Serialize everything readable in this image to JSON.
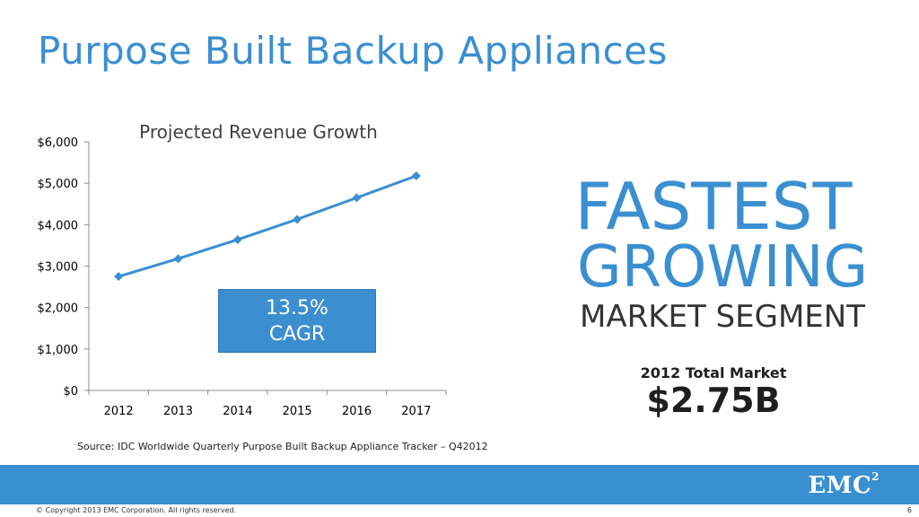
{
  "slide": {
    "title": "Purpose Built Backup Appliances",
    "source": "Source:  IDC Worldwide Quarterly Purpose Built Backup Appliance Tracker – Q42012",
    "copyright": "© Copyright 2013 EMC Corporation. All rights reserved.",
    "page_number": "6",
    "logo_text": "EMC",
    "logo_sup": "2"
  },
  "callout": {
    "cagr_value": "13.5%",
    "cagr_label": "CAGR"
  },
  "headline": {
    "line1": "FASTEST",
    "line2": "GROWING",
    "line3": "MARKET SEGMENT"
  },
  "total_market": {
    "label": "2012 Total Market",
    "value": "$2.75B"
  },
  "colors": {
    "accent": "#3a8fd1",
    "line": "#3a8fd1",
    "axis": "#888888"
  },
  "chart_data": {
    "type": "line",
    "title": "Projected Revenue Growth",
    "categories": [
      "2012",
      "2013",
      "2014",
      "2015",
      "2016",
      "2017"
    ],
    "series": [
      {
        "values": [
          2750,
          3180,
          3640,
          4130,
          4650,
          5180
        ]
      }
    ],
    "ylim": [
      0,
      6000
    ],
    "yticks": [
      0,
      1000,
      2000,
      3000,
      4000,
      5000,
      6000
    ],
    "ytick_labels": [
      "$0",
      "$1,000",
      "$2,000",
      "$3,000",
      "$4,000",
      "$5,000",
      "$6,000"
    ],
    "xlabel": "",
    "ylabel": "",
    "grid": false,
    "legend": "none"
  }
}
